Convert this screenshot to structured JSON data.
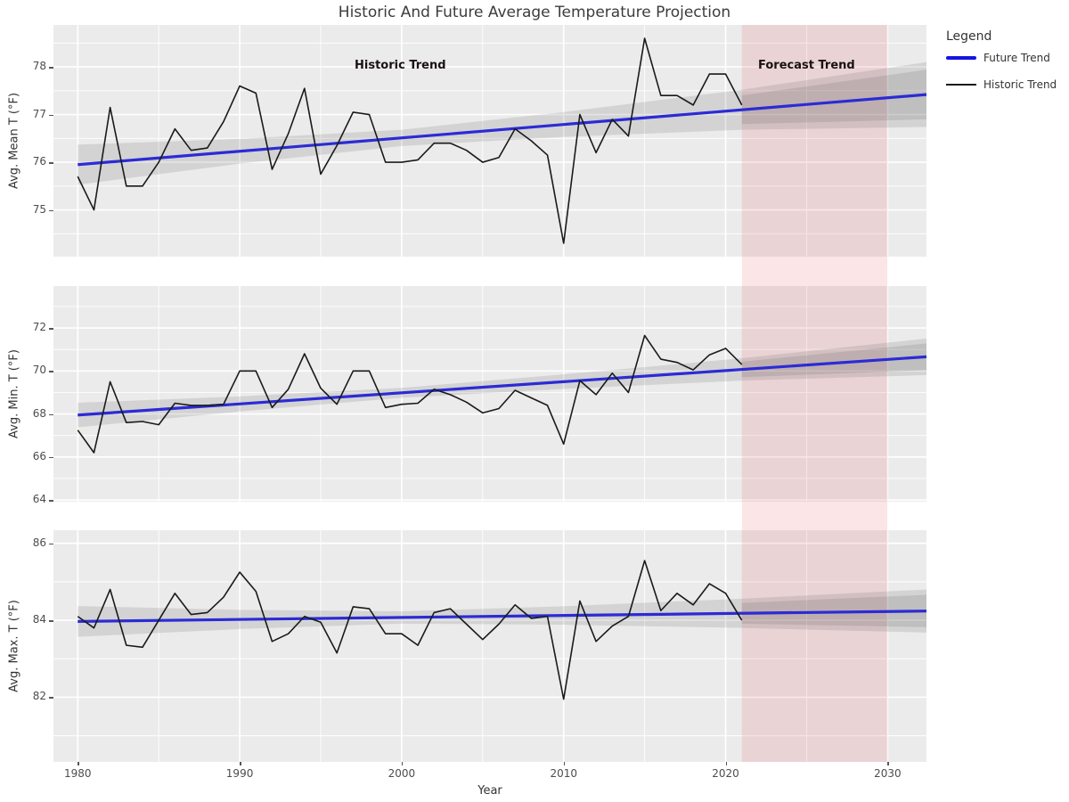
{
  "title": "Historic And Future Average Temperature Projection",
  "legend": {
    "title": "Legend",
    "items": [
      {
        "label": "Future Trend",
        "swatch": "thick-blue-line"
      },
      {
        "label": "Historic Trend",
        "swatch": "thin-black-line"
      }
    ]
  },
  "annotations": {
    "historic_label": "Historic Trend",
    "forecast_label": "Forecast Trend"
  },
  "colors": {
    "panel_bg": "#ebebeb",
    "gridline": "#ffffff",
    "historic_line": "#1a1a1a",
    "future_line": "#2b2bd5",
    "legend_blue": "#1414e0",
    "confidence_band": "rgba(70,70,70,0.14)",
    "forecast_region": "rgba(226,74,86,0.14)",
    "tick_text": "#4d4d4d"
  },
  "chart_data": {
    "type": "line",
    "title": "Historic And Future Average Temperature Projection",
    "year_start": 1980,
    "year_end_historic": 2021,
    "x": {
      "label": "Year",
      "lim": [
        1978.5,
        2032.4
      ],
      "ticks_major": [
        1980,
        1990,
        2000,
        2010,
        2020,
        2030
      ],
      "ticks_minor": [
        1985,
        1995,
        2005,
        2015,
        2025
      ]
    },
    "forecast_region": {
      "start": 2021,
      "end": 2030
    },
    "legend_position": "top-right-outside",
    "grid": true,
    "panels": [
      {
        "name": "avg-mean-temperature",
        "ylabel": "Avg. Mean T (°F)",
        "ylim": [
          74.02,
          78.88
        ],
        "yticks_major": [
          75,
          76,
          77,
          78
        ],
        "yticks_minor": [
          74.5,
          75.5,
          76.5,
          77.5,
          78.5
        ],
        "trend": {
          "x": [
            1980,
            2032.4
          ],
          "y": [
            75.95,
            77.42
          ]
        },
        "band": [
          [
            1980,
            0.42
          ],
          [
            1990,
            0.26
          ],
          [
            2000,
            0.17
          ],
          [
            2010,
            0.26
          ],
          [
            2021,
            0.42
          ],
          [
            2032.4,
            0.68
          ]
        ],
        "band2": [
          [
            2021,
            0.3
          ],
          [
            2032.4,
            0.52
          ]
        ],
        "values": [
          75.7,
          75.0,
          77.15,
          75.5,
          75.5,
          76.0,
          76.7,
          76.25,
          76.3,
          76.85,
          77.6,
          77.45,
          75.85,
          76.6,
          77.55,
          75.75,
          76.35,
          77.05,
          77.0,
          76.0,
          76.0,
          76.05,
          76.4,
          76.4,
          76.25,
          76.0,
          76.1,
          76.7,
          76.45,
          76.15,
          74.3,
          77.0,
          76.2,
          76.9,
          76.55,
          78.6,
          77.4,
          77.4,
          77.2,
          77.85,
          77.85,
          77.2
        ]
      },
      {
        "name": "avg-min-temperature",
        "ylabel": "Avg. Min. T (°F)",
        "ylim": [
          63.92,
          73.95
        ],
        "yticks_major": [
          64,
          66,
          68,
          70,
          72
        ],
        "yticks_minor": [
          65,
          67,
          69,
          71,
          73
        ],
        "trend": {
          "x": [
            1980,
            2032.4
          ],
          "y": [
            67.95,
            70.66
          ]
        },
        "band": [
          [
            1980,
            0.57
          ],
          [
            1990,
            0.35
          ],
          [
            2000,
            0.23
          ],
          [
            2010,
            0.34
          ],
          [
            2021,
            0.52
          ],
          [
            2032.4,
            0.85
          ]
        ],
        "band2": [
          [
            2021,
            0.36
          ],
          [
            2032.4,
            0.62
          ]
        ],
        "values": [
          67.25,
          66.2,
          69.5,
          67.6,
          67.65,
          67.5,
          68.5,
          68.4,
          68.4,
          68.45,
          70.0,
          70.0,
          68.3,
          69.15,
          70.8,
          69.2,
          68.45,
          70.0,
          70.0,
          68.3,
          68.45,
          68.5,
          69.15,
          68.9,
          68.55,
          68.05,
          68.25,
          69.1,
          68.75,
          68.4,
          66.6,
          69.55,
          68.9,
          69.9,
          69.0,
          71.65,
          70.55,
          70.4,
          70.05,
          70.75,
          71.05,
          70.3
        ]
      },
      {
        "name": "avg-max-temperature",
        "ylabel": "Avg. Max. T (°F)",
        "ylim": [
          80.32,
          86.34
        ],
        "yticks_major": [
          82,
          84,
          86
        ],
        "yticks_minor": [
          81,
          83,
          85
        ],
        "trend": {
          "x": [
            1980,
            2032.4
          ],
          "y": [
            83.97,
            84.24
          ]
        },
        "band": [
          [
            1980,
            0.4
          ],
          [
            1990,
            0.25
          ],
          [
            2000,
            0.16
          ],
          [
            2010,
            0.24
          ],
          [
            2021,
            0.38
          ],
          [
            2032.4,
            0.56
          ]
        ],
        "band2": [
          [
            2021,
            0.27
          ],
          [
            2032.4,
            0.42
          ]
        ],
        "values": [
          84.1,
          83.8,
          84.8,
          83.35,
          83.3,
          84.0,
          84.7,
          84.15,
          84.2,
          84.6,
          85.25,
          84.75,
          83.45,
          83.65,
          84.1,
          83.95,
          83.15,
          84.35,
          84.3,
          83.65,
          83.65,
          83.35,
          84.2,
          84.3,
          83.9,
          83.5,
          83.9,
          84.4,
          84.05,
          84.1,
          81.95,
          84.5,
          83.45,
          83.85,
          84.1,
          85.55,
          84.25,
          84.7,
          84.4,
          84.95,
          84.7,
          84.0
        ]
      }
    ]
  }
}
